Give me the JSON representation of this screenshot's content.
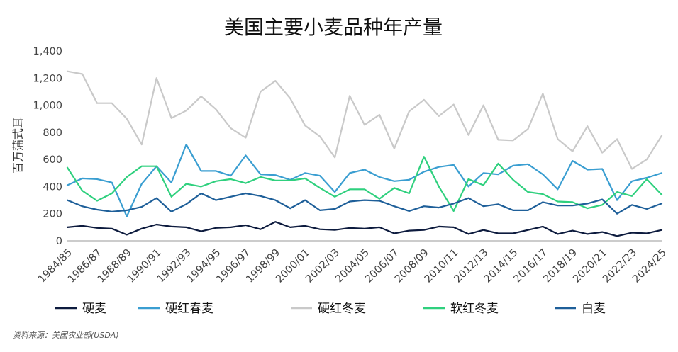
{
  "chart_data": {
    "type": "line",
    "title": "美国主要小麦品种年产量",
    "ylabel": "百万蒲式耳",
    "xlabel": "",
    "ylim": [
      0,
      1400
    ],
    "yticks": [
      "0",
      "200",
      "400",
      "600",
      "800",
      "1,000",
      "1,200",
      "1,400"
    ],
    "ytick_values": [
      0,
      200,
      400,
      600,
      800,
      1000,
      1200,
      1400
    ],
    "categories": [
      "1984/85",
      "1985/86",
      "1986/87",
      "1987/88",
      "1988/89",
      "1989/90",
      "1990/91",
      "1991/92",
      "1992/93",
      "1993/94",
      "1994/95",
      "1995/96",
      "1996/97",
      "1997/98",
      "1998/99",
      "1999/00",
      "2000/01",
      "2001/02",
      "2002/03",
      "2003/04",
      "2004/05",
      "2005/06",
      "2006/07",
      "2007/08",
      "2008/09",
      "2009/10",
      "2010/11",
      "2011/12",
      "2012/13",
      "2013/14",
      "2014/15",
      "2015/16",
      "2016/17",
      "2017/18",
      "2018/19",
      "2019/20",
      "2020/21",
      "2021/22",
      "2022/23",
      "2023/24",
      "2024/25"
    ],
    "tick_labels": [
      "1984/85",
      "1986/87",
      "1988/89",
      "1990/91",
      "1992/93",
      "1994/95",
      "1996/97",
      "1998/99",
      "2000/01",
      "2002/03",
      "2004/05",
      "2006/07",
      "2008/09",
      "2010/11",
      "2012/13",
      "2014/15",
      "2016/17",
      "2018/19",
      "2020/21",
      "2022/23",
      "2024/25"
    ],
    "grid": false,
    "legend_position": "bottom",
    "series": [
      {
        "name": "硬麦",
        "color": "#0d1b3e",
        "values": [
          100,
          110,
          95,
          90,
          45,
          90,
          120,
          105,
          100,
          70,
          95,
          100,
          115,
          85,
          140,
          100,
          110,
          85,
          80,
          95,
          90,
          100,
          55,
          75,
          80,
          105,
          100,
          50,
          80,
          55,
          55,
          80,
          105,
          50,
          75,
          50,
          65,
          35,
          60,
          55,
          80
        ]
      },
      {
        "name": "硬红春麦",
        "color": "#3a9ed1",
        "values": [
          410,
          460,
          455,
          430,
          180,
          420,
          550,
          430,
          710,
          515,
          515,
          480,
          630,
          490,
          485,
          450,
          500,
          480,
          360,
          500,
          525,
          470,
          440,
          450,
          510,
          545,
          560,
          400,
          500,
          490,
          555,
          565,
          490,
          380,
          590,
          525,
          530,
          300,
          440,
          465,
          500
        ]
      },
      {
        "name": "硬红冬麦",
        "color": "#c9c9c9",
        "values": [
          1250,
          1230,
          1015,
          1015,
          900,
          710,
          1200,
          905,
          960,
          1065,
          970,
          830,
          760,
          1100,
          1180,
          1050,
          850,
          770,
          615,
          1070,
          855,
          930,
          680,
          955,
          1040,
          920,
          1005,
          780,
          1000,
          745,
          740,
          825,
          1085,
          750,
          660,
          845,
          650,
          750,
          530,
          600,
          775
        ]
      },
      {
        "name": "软红冬麦",
        "color": "#2fd07e",
        "values": [
          540,
          370,
          295,
          350,
          470,
          550,
          550,
          325,
          420,
          400,
          440,
          455,
          425,
          470,
          445,
          445,
          460,
          390,
          325,
          380,
          380,
          310,
          390,
          350,
          620,
          400,
          220,
          455,
          410,
          570,
          450,
          360,
          345,
          290,
          285,
          240,
          265,
          360,
          330,
          455,
          340
        ]
      },
      {
        "name": "白麦",
        "color": "#1e5f99",
        "values": [
          300,
          255,
          230,
          215,
          225,
          250,
          315,
          215,
          270,
          350,
          300,
          325,
          350,
          330,
          300,
          240,
          300,
          225,
          235,
          290,
          300,
          295,
          255,
          220,
          255,
          245,
          275,
          315,
          255,
          270,
          225,
          225,
          285,
          260,
          260,
          275,
          305,
          200,
          265,
          235,
          275
        ]
      }
    ]
  },
  "source_note": "资料来源：美国农业部(USDA)"
}
